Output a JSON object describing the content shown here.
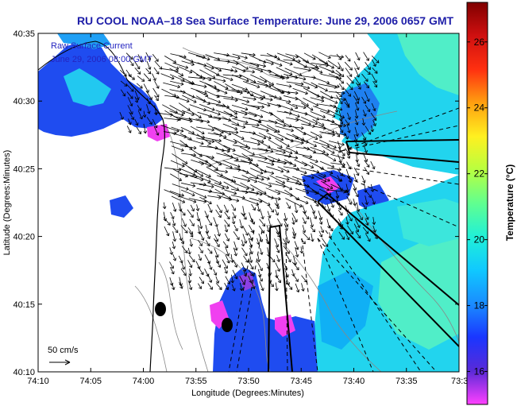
{
  "chart_data": {
    "type": "heatmap",
    "title": "RU COOL  NOAA–18  Sea Surface Temperature:  June 29, 2006 0657 GMT",
    "xlabel": "Longitude (Degrees:Minutes)",
    "ylabel": "Latitude (Degrees:Minutes)",
    "x_tick_labels": [
      "74:10",
      "74:05",
      "74:00",
      "73:55",
      "73:50",
      "73:45",
      "73:40",
      "73:35",
      "73:3"
    ],
    "y_tick_labels": [
      "40:35",
      "40:30",
      "40:25",
      "40:20",
      "40:15",
      "40:10"
    ],
    "xlim": [
      -74.1667,
      -73.5
    ],
    "ylim": [
      40.1667,
      40.5833
    ],
    "annotations": {
      "current_label": "Raw Surface Current",
      "current_time": "June 29, 2006 08:00 GMT",
      "scale_label": "50 cm/s"
    },
    "colorbar": {
      "label": "Temperature (°C)",
      "ticks": [
        "16",
        "18",
        "20",
        "22",
        "24",
        "26"
      ],
      "tick_values": [
        16,
        18,
        20,
        22,
        24,
        26
      ],
      "range": [
        15,
        27.2
      ],
      "colors": [
        "#ff40ff",
        "#5a2ad8",
        "#1a36ff",
        "#1a8cff",
        "#10c8ff",
        "#20f0d8",
        "#60ff90",
        "#b8ff40",
        "#fff020",
        "#ffa010",
        "#ff3010",
        "#d01010",
        "#800000"
      ]
    },
    "colors": {
      "land": "#ffffff",
      "cold": "#1f4cf0",
      "cool": "#0fb0f5",
      "mild": "#22d4ee",
      "warm": "#50eec8",
      "teal": "#3ce6dc",
      "magenta": "#f040f0",
      "purple": "#8c40e6",
      "arrow": "#000000",
      "contour": "#888888",
      "title": "#1e1ea8"
    },
    "grid": false
  }
}
